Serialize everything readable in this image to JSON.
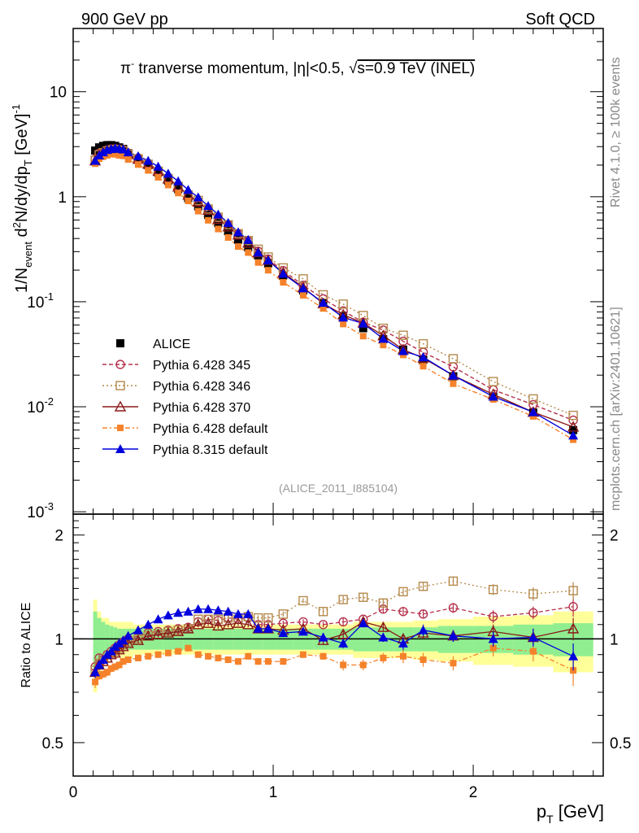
{
  "header": {
    "left": "900 GeV pp",
    "right": "Soft QCD"
  },
  "side_labels": {
    "rivet": "Rivet 4.1.0, ≥ 100k events",
    "mcplots": "mcplots.cern.ch [arXiv:2401.10621]"
  },
  "chart_data": {
    "type": "line",
    "title": "π⁻ tranverse momentum, |η|<0.5, √s=0.9 TeV (INEL)",
    "title_parts": {
      "pi": "π",
      "sup": "-",
      "rest": " tranverse momentum, ",
      "eta": "η|<0.5, ",
      "sqrt": "√",
      "s": "s=0.9 TeV (INEL)"
    },
    "analysis_id": "(ALICE_2011_I885104)",
    "xlabel": "p_T [GeV]",
    "xlabel_parts": {
      "p": "p",
      "T": "T",
      "unit": " [GeV]"
    },
    "ylabel": "1/N_event d²N/dy/dp_T [GeV]⁻¹",
    "ylabel_parts": {
      "a": "1/N",
      "event": "event",
      "b": " d",
      "two": "2",
      "c": "N/dy/dp",
      "T": "T",
      "d": " [GeV]",
      "m1": "-1"
    },
    "ratio_ylabel": "Ratio to ALICE",
    "xlim": [
      0,
      2.65
    ],
    "ylim": [
      0.00095,
      40
    ],
    "ratio_ylim": [
      0.4,
      2.3
    ],
    "x_ticks": [
      "0",
      "1",
      "2"
    ],
    "y_ticks": [
      {
        "base": "10",
        "exp": "-3"
      },
      {
        "base": "10",
        "exp": "-2"
      },
      {
        "base": "10",
        "exp": "-1"
      },
      {
        "base": "1",
        "exp": ""
      },
      {
        "base": "10",
        "exp": ""
      }
    ],
    "ratio_ticks": [
      "0.5",
      "1",
      "2"
    ],
    "x": [
      0.11,
      0.13,
      0.15,
      0.17,
      0.19,
      0.21,
      0.23,
      0.25,
      0.275,
      0.325,
      0.375,
      0.425,
      0.475,
      0.525,
      0.575,
      0.625,
      0.675,
      0.725,
      0.775,
      0.825,
      0.875,
      0.925,
      0.975,
      1.05,
      1.15,
      1.25,
      1.35,
      1.45,
      1.55,
      1.65,
      1.75,
      1.9,
      2.1,
      2.3,
      2.5
    ],
    "data": {
      "name": "ALICE",
      "values": [
        2.75,
        2.95,
        3.05,
        3.1,
        3.1,
        3.05,
        2.95,
        2.85,
        2.6,
        2.3,
        2.0,
        1.7,
        1.42,
        1.18,
        0.97,
        0.81,
        0.67,
        0.56,
        0.47,
        0.39,
        0.33,
        0.275,
        0.232,
        0.178,
        0.128,
        0.097,
        0.073,
        0.056,
        0.044,
        0.035,
        0.028,
        0.0195,
        0.0125,
        0.0088,
        0.006
      ],
      "band_inner": [
        0.2,
        0.15,
        0.12,
        0.1,
        0.09,
        0.08,
        0.07,
        0.07,
        0.07,
        0.07,
        0.07,
        0.07,
        0.07,
        0.07,
        0.07,
        0.07,
        0.07,
        0.07,
        0.07,
        0.07,
        0.07,
        0.07,
        0.07,
        0.07,
        0.07,
        0.07,
        0.07,
        0.08,
        0.08,
        0.08,
        0.08,
        0.09,
        0.09,
        0.1,
        0.11
      ],
      "band_outer": [
        0.3,
        0.2,
        0.15,
        0.15,
        0.12,
        0.12,
        0.12,
        0.12,
        0.12,
        0.1,
        0.1,
        0.1,
        0.1,
        0.1,
        0.1,
        0.1,
        0.1,
        0.1,
        0.1,
        0.1,
        0.1,
        0.1,
        0.1,
        0.1,
        0.1,
        0.1,
        0.1,
        0.12,
        0.12,
        0.12,
        0.13,
        0.14,
        0.16,
        0.17,
        0.2
      ]
    },
    "series": [
      {
        "name": "Pythia 6.428 345",
        "color": "#b5304a",
        "dash": "5,3",
        "marker": "circle-open",
        "ratio": [
          0.83,
          0.88,
          0.87,
          0.9,
          0.92,
          0.94,
          0.96,
          0.98,
          1.0,
          1.02,
          1.04,
          1.05,
          1.06,
          1.07,
          1.08,
          1.12,
          1.14,
          1.13,
          1.15,
          1.14,
          1.15,
          1.1,
          1.1,
          1.11,
          1.12,
          1.1,
          1.12,
          1.14,
          1.22,
          1.2,
          1.18,
          1.23,
          1.16,
          1.19,
          1.24
        ],
        "ratio_err": [
          0.03,
          0.02,
          0.02,
          0.02,
          0.02,
          0.02,
          0.02,
          0.02,
          0.02,
          0.02,
          0.02,
          0.02,
          0.02,
          0.02,
          0.02,
          0.02,
          0.02,
          0.02,
          0.02,
          0.02,
          0.02,
          0.02,
          0.02,
          0.02,
          0.02,
          0.02,
          0.03,
          0.03,
          0.03,
          0.03,
          0.03,
          0.04,
          0.05,
          0.05,
          0.08
        ]
      },
      {
        "name": "Pythia 6.428 346",
        "color": "#b4894b",
        "dash": "2,3",
        "marker": "square-open",
        "ratio": [
          0.81,
          0.85,
          0.86,
          0.88,
          0.9,
          0.92,
          0.94,
          0.96,
          0.98,
          1.0,
          1.02,
          1.03,
          1.05,
          1.06,
          1.07,
          1.14,
          1.14,
          1.14,
          1.15,
          1.14,
          1.16,
          1.15,
          1.15,
          1.18,
          1.29,
          1.2,
          1.3,
          1.32,
          1.27,
          1.37,
          1.42,
          1.47,
          1.39,
          1.35,
          1.38
        ],
        "ratio_err": [
          0.03,
          0.02,
          0.02,
          0.02,
          0.02,
          0.02,
          0.02,
          0.02,
          0.02,
          0.02,
          0.02,
          0.02,
          0.02,
          0.02,
          0.02,
          0.02,
          0.02,
          0.02,
          0.02,
          0.02,
          0.02,
          0.02,
          0.02,
          0.02,
          0.02,
          0.03,
          0.03,
          0.03,
          0.03,
          0.03,
          0.04,
          0.04,
          0.05,
          0.06,
          0.08
        ]
      },
      {
        "name": "Pythia 6.428 370",
        "color": "#8b1a1a",
        "dash": "",
        "marker": "triangle-open",
        "ratio": [
          0.8,
          0.84,
          0.86,
          0.88,
          0.9,
          0.91,
          0.93,
          0.95,
          0.97,
          0.99,
          1.02,
          1.03,
          1.04,
          1.05,
          1.07,
          1.1,
          1.11,
          1.09,
          1.1,
          1.11,
          1.1,
          1.07,
          1.07,
          1.06,
          1.07,
          0.99,
          1.03,
          1.12,
          1.08,
          1.0,
          1.04,
          1.02,
          1.05,
          1.01,
          1.07
        ],
        "ratio_err": [
          0.03,
          0.02,
          0.02,
          0.02,
          0.02,
          0.02,
          0.02,
          0.02,
          0.02,
          0.02,
          0.02,
          0.02,
          0.02,
          0.02,
          0.02,
          0.02,
          0.02,
          0.02,
          0.02,
          0.02,
          0.02,
          0.02,
          0.02,
          0.02,
          0.02,
          0.03,
          0.03,
          0.03,
          0.03,
          0.03,
          0.04,
          0.04,
          0.05,
          0.06,
          0.08
        ]
      },
      {
        "name": "Pythia 6.428 default",
        "color": "#f5822a",
        "dash": "6,3,2,3",
        "marker": "square-filled",
        "ratio": [
          0.75,
          0.78,
          0.79,
          0.8,
          0.82,
          0.83,
          0.84,
          0.86,
          0.87,
          0.88,
          0.89,
          0.9,
          0.91,
          0.92,
          0.94,
          0.9,
          0.89,
          0.88,
          0.87,
          0.86,
          0.89,
          0.86,
          0.86,
          0.86,
          0.9,
          0.89,
          0.84,
          0.84,
          0.88,
          0.89,
          0.87,
          0.85,
          0.94,
          0.92,
          0.81
        ],
        "ratio_err": [
          0.03,
          0.02,
          0.02,
          0.02,
          0.02,
          0.02,
          0.02,
          0.02,
          0.02,
          0.02,
          0.02,
          0.02,
          0.02,
          0.02,
          0.02,
          0.02,
          0.02,
          0.02,
          0.02,
          0.02,
          0.02,
          0.02,
          0.02,
          0.02,
          0.02,
          0.02,
          0.03,
          0.03,
          0.03,
          0.04,
          0.04,
          0.04,
          0.05,
          0.06,
          0.08
        ]
      },
      {
        "name": "Pythia 8.315 default",
        "color": "#0000dd",
        "dash": "",
        "marker": "triangle-filled",
        "ratio": [
          0.8,
          0.84,
          0.87,
          0.9,
          0.92,
          0.95,
          0.97,
          0.99,
          1.02,
          1.06,
          1.1,
          1.14,
          1.17,
          1.19,
          1.2,
          1.22,
          1.22,
          1.21,
          1.2,
          1.18,
          1.18,
          1.07,
          1.07,
          1.04,
          1.05,
          1.01,
          0.97,
          1.11,
          1.01,
          0.97,
          1.06,
          1.02,
          1.0,
          1.01,
          0.89
        ],
        "ratio_err": [
          0.03,
          0.02,
          0.02,
          0.02,
          0.02,
          0.02,
          0.02,
          0.02,
          0.02,
          0.02,
          0.02,
          0.02,
          0.02,
          0.02,
          0.02,
          0.02,
          0.02,
          0.02,
          0.02,
          0.02,
          0.02,
          0.02,
          0.02,
          0.02,
          0.02,
          0.03,
          0.03,
          0.03,
          0.03,
          0.04,
          0.04,
          0.04,
          0.05,
          0.06,
          0.08
        ]
      }
    ]
  }
}
